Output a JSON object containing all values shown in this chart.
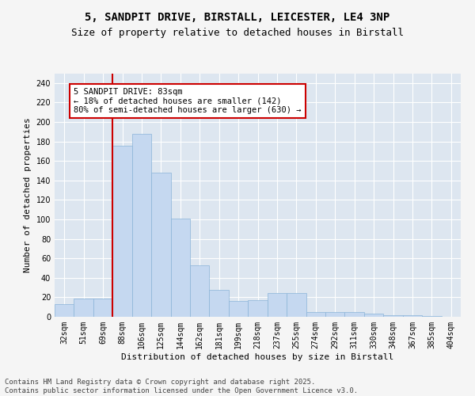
{
  "title_line1": "5, SANDPIT DRIVE, BIRSTALL, LEICESTER, LE4 3NP",
  "title_line2": "Size of property relative to detached houses in Birstall",
  "xlabel": "Distribution of detached houses by size in Birstall",
  "ylabel": "Number of detached properties",
  "categories": [
    "32sqm",
    "51sqm",
    "69sqm",
    "88sqm",
    "106sqm",
    "125sqm",
    "144sqm",
    "162sqm",
    "181sqm",
    "199sqm",
    "218sqm",
    "237sqm",
    "255sqm",
    "274sqm",
    "292sqm",
    "311sqm",
    "330sqm",
    "348sqm",
    "367sqm",
    "385sqm",
    "404sqm"
  ],
  "values": [
    13,
    19,
    19,
    176,
    188,
    148,
    101,
    53,
    28,
    16,
    17,
    24,
    24,
    5,
    5,
    5,
    3,
    2,
    2,
    1,
    0
  ],
  "bar_color": "#c5d8f0",
  "bar_edge_color": "#8ab4d8",
  "background_color": "#dde6f0",
  "grid_color": "#ffffff",
  "annotation_text": "5 SANDPIT DRIVE: 83sqm\n← 18% of detached houses are smaller (142)\n80% of semi-detached houses are larger (630) →",
  "annotation_box_color": "#ffffff",
  "annotation_box_edge_color": "#cc0000",
  "vline_color": "#cc0000",
  "ylim": [
    0,
    250
  ],
  "yticks": [
    0,
    20,
    40,
    60,
    80,
    100,
    120,
    140,
    160,
    180,
    200,
    220,
    240
  ],
  "footer_text": "Contains HM Land Registry data © Crown copyright and database right 2025.\nContains public sector information licensed under the Open Government Licence v3.0.",
  "fig_bg_color": "#f5f5f5",
  "title_fontsize": 10,
  "subtitle_fontsize": 9,
  "axis_label_fontsize": 8,
  "tick_fontsize": 7,
  "annotation_fontsize": 7.5,
  "footer_fontsize": 6.5
}
